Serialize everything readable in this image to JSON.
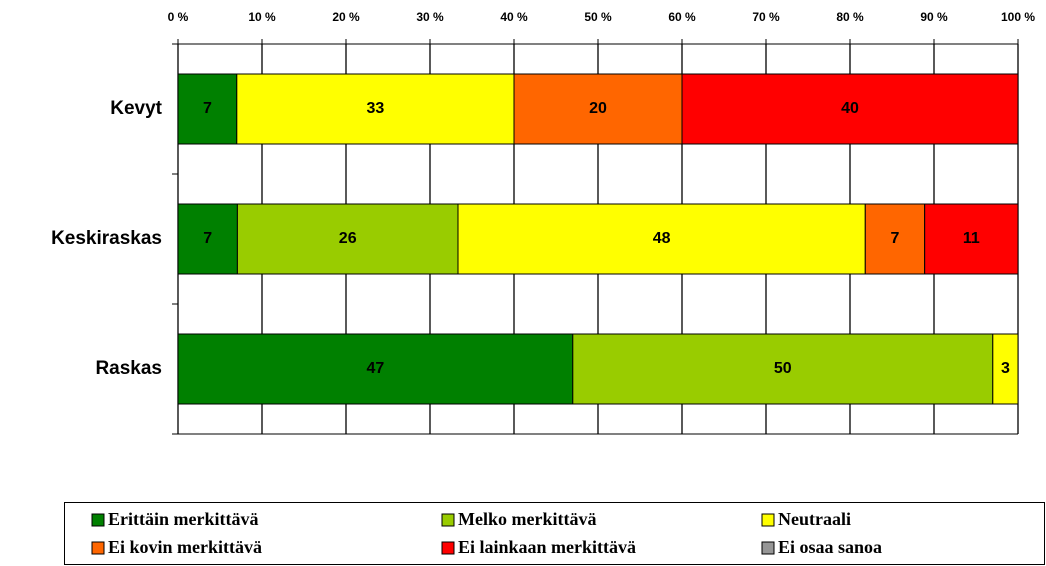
{
  "chart_data": {
    "type": "stacked_bar_horizontal",
    "categories": [
      "Kevyt",
      "Keskiraskas",
      "Raskas"
    ],
    "series": [
      {
        "name": "Erittäin merkittävä",
        "color": "#008000",
        "values": [
          7,
          7,
          47
        ]
      },
      {
        "name": "Melko merkittävä",
        "color": "#99cc00",
        "values": [
          null,
          26,
          50
        ]
      },
      {
        "name": "Neutraali",
        "color": "#ffff00",
        "values": [
          33,
          48,
          3
        ]
      },
      {
        "name": "Ei kovin merkittävä",
        "color": "#ff6600",
        "values": [
          20,
          7,
          null
        ]
      },
      {
        "name": "Ei lainkaan merkittävä",
        "color": "#ff0000",
        "values": [
          40,
          11,
          null
        ]
      },
      {
        "name": "Ei osaa sanoa",
        "color": "#969696",
        "values": [
          null,
          null,
          null
        ]
      }
    ],
    "xlim": [
      0,
      100
    ],
    "xticks": [
      {
        "value": 0,
        "label": "0 %"
      },
      {
        "value": 10,
        "label": "10 %"
      },
      {
        "value": 20,
        "label": "20 %"
      },
      {
        "value": 30,
        "label": "30 %"
      },
      {
        "value": 40,
        "label": "40 %"
      },
      {
        "value": 50,
        "label": "50 %"
      },
      {
        "value": 60,
        "label": "60 %"
      },
      {
        "value": 70,
        "label": "70 %"
      },
      {
        "value": 80,
        "label": "80 %"
      },
      {
        "value": 90,
        "label": "90 %"
      },
      {
        "value": 100,
        "label": "100 %"
      }
    ],
    "grid": true,
    "legend": "bottom"
  }
}
